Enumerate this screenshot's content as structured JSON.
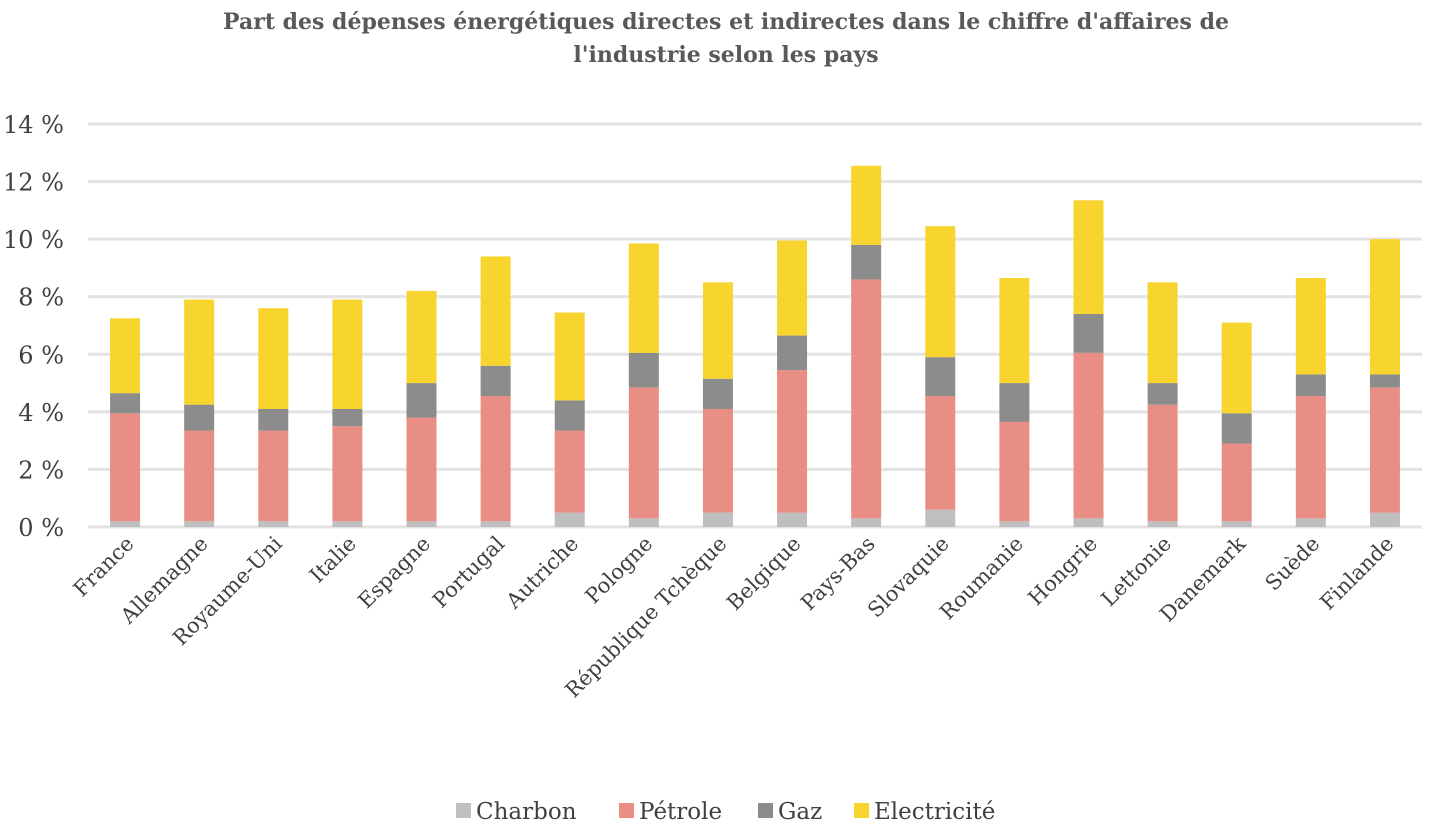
{
  "chart_data": {
    "type": "bar",
    "stacked": true,
    "title": "Part des dépenses énergétiques directes et indirectes dans le chiffre d'affaires de l'industrie selon les pays",
    "title_lines": [
      "Part des dépenses énergétiques directes et indirectes dans le chiffre d'affaires de",
      "l'industrie selon les pays"
    ],
    "xlabel": "",
    "ylabel": "",
    "ylim": [
      0,
      14
    ],
    "yticks": [
      0,
      2,
      4,
      6,
      8,
      10,
      12,
      14
    ],
    "ytick_labels": [
      "0 %",
      "2 %",
      "4 %",
      "6 %",
      "8 %",
      "10 %",
      "12 %",
      "14 %"
    ],
    "grid": true,
    "legend_position": "bottom",
    "categories": [
      "France",
      "Allemagne",
      "Royaume-Uni",
      "Italie",
      "Espagne",
      "Portugal",
      "Autriche",
      "Pologne",
      "République Tchèque",
      "Belgique",
      "Pays-Bas",
      "Slovaquie",
      "Roumanie",
      "Hongrie",
      "Lettonie",
      "Danemark",
      "Suède",
      "Finlande"
    ],
    "series": [
      {
        "name": "Charbon",
        "color": "#bfbfbf",
        "values": [
          0.2,
          0.2,
          0.2,
          0.2,
          0.2,
          0.2,
          0.5,
          0.3,
          0.5,
          0.5,
          0.3,
          0.6,
          0.2,
          0.3,
          0.2,
          0.2,
          0.3,
          0.5
        ]
      },
      {
        "name": "Pétrole",
        "color": "#e98e85",
        "values": [
          3.75,
          3.15,
          3.15,
          3.3,
          3.6,
          4.35,
          2.85,
          4.55,
          3.6,
          4.95,
          8.3,
          3.95,
          3.45,
          5.75,
          4.05,
          2.7,
          4.25,
          4.35
        ]
      },
      {
        "name": "Gaz",
        "color": "#8c8c8c",
        "values": [
          0.7,
          0.9,
          0.75,
          0.6,
          1.2,
          1.05,
          1.05,
          1.2,
          1.05,
          1.2,
          1.2,
          1.35,
          1.35,
          1.35,
          0.75,
          1.05,
          0.75,
          0.45
        ]
      },
      {
        "name": "Electricité",
        "color": "#f7d42e",
        "values": [
          2.6,
          3.65,
          3.5,
          3.8,
          3.2,
          3.8,
          3.05,
          3.8,
          3.35,
          3.3,
          2.75,
          4.55,
          3.65,
          3.95,
          3.5,
          3.15,
          3.35,
          4.7
        ]
      }
    ]
  }
}
